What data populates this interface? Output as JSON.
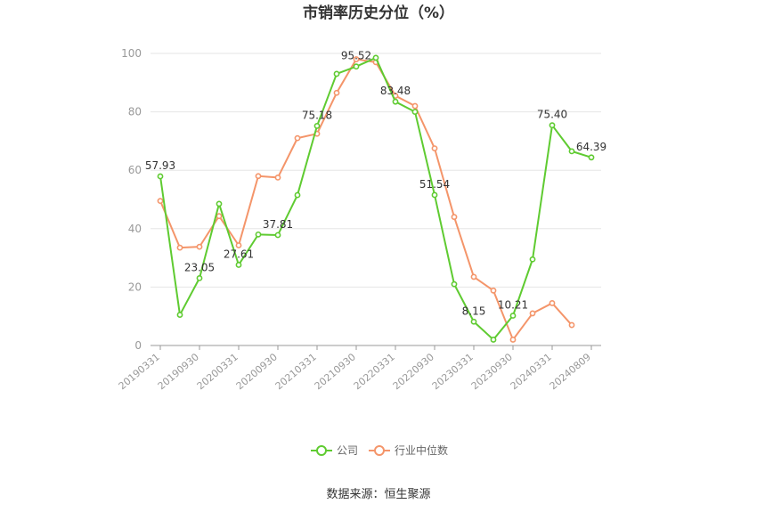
{
  "chart_data": {
    "type": "line",
    "title": "市销率历史分位（%）",
    "source": "数据来源：恒生聚源",
    "ylim": [
      0,
      100
    ],
    "yticks": [
      "0",
      "20",
      "40",
      "60",
      "80",
      "100"
    ],
    "xticks": [
      "20190331",
      "20190930",
      "20200331",
      "20200930",
      "20210331",
      "20210930",
      "20220331",
      "20220930",
      "20230331",
      "20230930",
      "20240331",
      "20240809"
    ],
    "legend_position": "bottom",
    "colors": {
      "company": "#5fcb31",
      "industry": "#f4956a"
    },
    "series": [
      {
        "name": "公司",
        "values": [
          57.93,
          10.5,
          23.05,
          48.5,
          27.61,
          38.0,
          37.81,
          51.5,
          75.18,
          93.0,
          95.52,
          98.5,
          83.48,
          80.0,
          51.54,
          21.0,
          8.15,
          2.0,
          10.21,
          29.5,
          75.4,
          66.5,
          64.39
        ]
      },
      {
        "name": "行业中位数",
        "values": [
          49.5,
          33.5,
          33.8,
          44.3,
          34.3,
          58.0,
          57.5,
          71.0,
          72.5,
          86.5,
          98.0,
          97.0,
          85.5,
          82.0,
          67.5,
          44.0,
          23.5,
          18.8,
          2.0,
          11.0,
          14.5,
          7.0,
          null
        ]
      }
    ],
    "data_labels": [
      {
        "series": 0,
        "index": 0,
        "text": "57.93",
        "pos": "above"
      },
      {
        "series": 0,
        "index": 2,
        "text": "23.05",
        "pos": "above"
      },
      {
        "series": 0,
        "index": 4,
        "text": "27.61",
        "pos": "above"
      },
      {
        "series": 0,
        "index": 6,
        "text": "37.81",
        "pos": "above"
      },
      {
        "series": 0,
        "index": 8,
        "text": "75.18",
        "pos": "above"
      },
      {
        "series": 0,
        "index": 10,
        "text": "95.52",
        "pos": "above"
      },
      {
        "series": 0,
        "index": 12,
        "text": "83.48",
        "pos": "above"
      },
      {
        "series": 0,
        "index": 14,
        "text": "51.54",
        "pos": "above"
      },
      {
        "series": 0,
        "index": 16,
        "text": "8.15",
        "pos": "above"
      },
      {
        "series": 0,
        "index": 18,
        "text": "10.21",
        "pos": "above"
      },
      {
        "series": 0,
        "index": 20,
        "text": "75.40",
        "pos": "above"
      },
      {
        "series": 0,
        "index": 22,
        "text": "64.39",
        "pos": "above"
      }
    ]
  }
}
